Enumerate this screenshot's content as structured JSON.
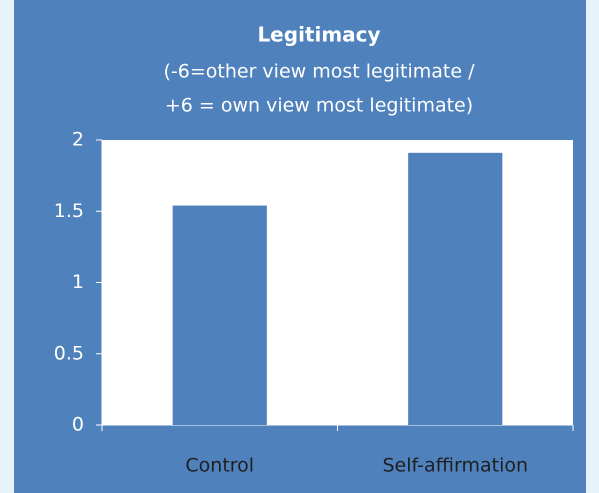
{
  "chart_data": {
    "type": "bar",
    "title": "Legitimacy",
    "subtitle": [
      "(-6=other view most legitimate /",
      "+6 = own view most legitimate)"
    ],
    "categories": [
      "Control",
      "Self-affirmation"
    ],
    "values": [
      1.54,
      1.91
    ],
    "color": "#4f81bd",
    "ylim": [
      0,
      2
    ],
    "yticks": [
      0,
      0.5,
      1,
      1.5,
      2
    ],
    "grid": false
  }
}
